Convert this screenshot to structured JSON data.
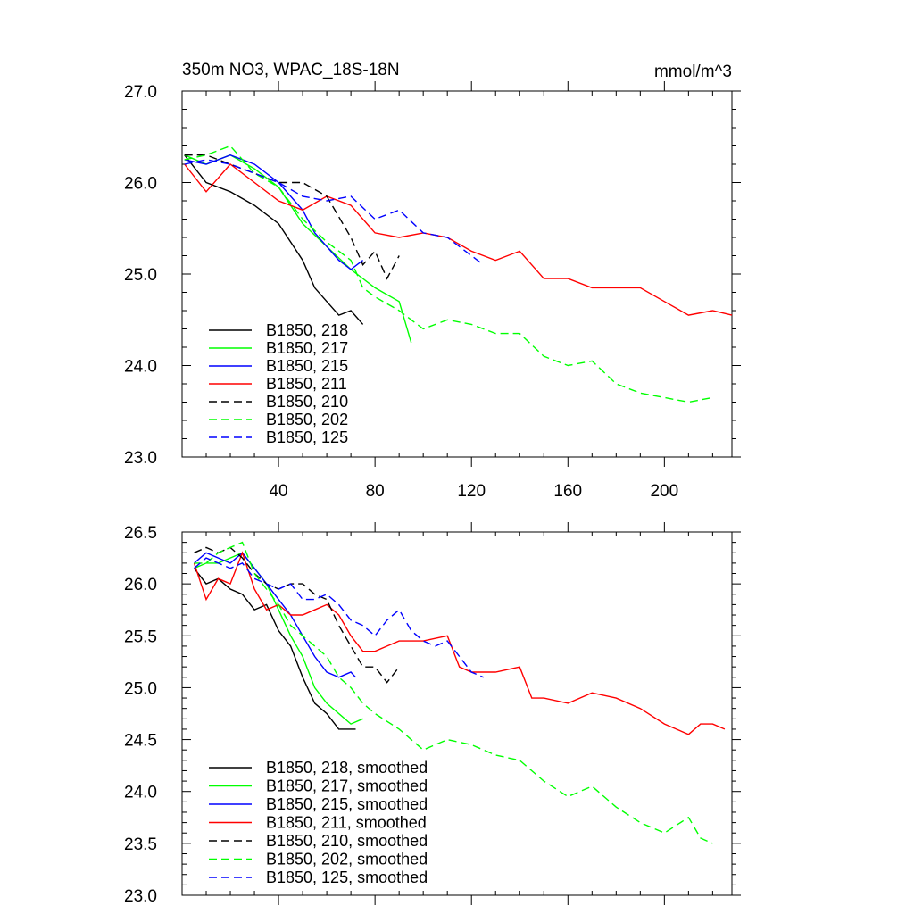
{
  "chart_data": [
    {
      "type": "line",
      "title": "350m NO3, WPAC_18S-18N",
      "units": "mmol/m^3",
      "xlabel": "",
      "ylabel": "",
      "xlim": [
        0,
        228
      ],
      "ylim": [
        23.0,
        27.0
      ],
      "x_ticks": [
        40,
        80,
        120,
        160,
        200
      ],
      "x_tick_labels": [
        "40",
        "80",
        "120",
        "160",
        "200"
      ],
      "y_ticks": [
        23.0,
        24.0,
        25.0,
        26.0,
        27.0
      ],
      "y_tick_labels": [
        "23.0",
        "24.0",
        "25.0",
        "26.0",
        "27.0"
      ],
      "legend_position": "bottom-left",
      "series": [
        {
          "name": "B1850, 218",
          "color": "#000000",
          "dash": "solid",
          "x": [
            1,
            10,
            20,
            30,
            40,
            50,
            55,
            60,
            65,
            70,
            75
          ],
          "values": [
            26.3,
            26.0,
            25.9,
            25.75,
            25.55,
            25.15,
            24.85,
            24.7,
            24.55,
            24.6,
            24.45
          ]
        },
        {
          "name": "B1850, 217",
          "color": "#00ff00",
          "dash": "solid",
          "x": [
            1,
            10,
            20,
            30,
            40,
            50,
            60,
            70,
            80,
            90,
            95
          ],
          "values": [
            26.3,
            26.2,
            26.3,
            26.15,
            25.95,
            25.55,
            25.3,
            25.05,
            24.85,
            24.7,
            24.25
          ]
        },
        {
          "name": "B1850, 215",
          "color": "#0000ff",
          "dash": "solid",
          "x": [
            1,
            10,
            20,
            30,
            40,
            50,
            55,
            60,
            65,
            70,
            75
          ],
          "values": [
            26.25,
            26.2,
            26.3,
            26.2,
            26.0,
            25.7,
            25.45,
            25.3,
            25.15,
            25.05,
            25.15
          ]
        },
        {
          "name": "B1850, 211",
          "color": "#ff0000",
          "dash": "solid",
          "x": [
            1,
            10,
            20,
            30,
            40,
            50,
            60,
            70,
            80,
            90,
            100,
            110,
            120,
            130,
            140,
            150,
            160,
            170,
            180,
            190,
            200,
            210,
            220,
            228
          ],
          "values": [
            26.2,
            25.9,
            26.2,
            26.0,
            25.8,
            25.7,
            25.85,
            25.75,
            25.45,
            25.4,
            25.45,
            25.4,
            25.25,
            25.15,
            25.25,
            24.95,
            24.95,
            24.85,
            24.85,
            24.85,
            24.7,
            24.55,
            24.6,
            24.55
          ]
        },
        {
          "name": "B1850, 210",
          "color": "#000000",
          "dash": "dashed",
          "x": [
            1,
            10,
            20,
            30,
            40,
            50,
            60,
            70,
            75,
            80,
            85,
            90
          ],
          "values": [
            26.3,
            26.3,
            26.2,
            26.1,
            26.0,
            26.0,
            25.85,
            25.4,
            25.1,
            25.25,
            24.95,
            25.2
          ]
        },
        {
          "name": "B1850, 202",
          "color": "#00ff00",
          "dash": "dashed",
          "x": [
            1,
            10,
            20,
            30,
            40,
            50,
            60,
            70,
            75,
            80,
            90,
            100,
            110,
            120,
            130,
            140,
            150,
            160,
            170,
            180,
            190,
            200,
            210,
            220
          ],
          "values": [
            26.25,
            26.3,
            26.4,
            26.1,
            25.95,
            25.6,
            25.35,
            25.15,
            24.85,
            24.75,
            24.6,
            24.4,
            24.5,
            24.45,
            24.35,
            24.35,
            24.1,
            24.0,
            24.05,
            23.8,
            23.7,
            23.65,
            23.6,
            23.65
          ]
        },
        {
          "name": "B1850, 125",
          "color": "#0000ff",
          "dash": "dashed",
          "x": [
            1,
            10,
            20,
            30,
            40,
            50,
            60,
            70,
            80,
            90,
            100,
            110,
            120,
            125
          ],
          "values": [
            26.2,
            26.25,
            26.2,
            26.1,
            26.0,
            25.85,
            25.8,
            25.85,
            25.6,
            25.7,
            25.45,
            25.4,
            25.2,
            25.1
          ]
        }
      ]
    },
    {
      "type": "line",
      "title": "",
      "xlabel": "",
      "ylabel": "",
      "xlim": [
        0,
        228
      ],
      "ylim": [
        23.0,
        26.5
      ],
      "x_ticks": [
        40,
        80,
        120,
        160,
        200
      ],
      "x_tick_labels": [],
      "y_ticks": [
        23.0,
        23.5,
        24.0,
        24.5,
        25.0,
        25.5,
        26.0,
        26.5
      ],
      "y_tick_labels": [
        "23.0",
        "23.5",
        "24.0",
        "24.5",
        "25.0",
        "25.5",
        "26.0",
        "26.5"
      ],
      "legend_position": "bottom-left",
      "series": [
        {
          "name": "B1850, 218, smoothed",
          "color": "#000000",
          "dash": "solid",
          "x": [
            5,
            10,
            15,
            20,
            25,
            30,
            35,
            40,
            45,
            50,
            55,
            60,
            65,
            70,
            72
          ],
          "values": [
            26.15,
            26.0,
            26.05,
            25.95,
            25.9,
            25.75,
            25.8,
            25.55,
            25.4,
            25.1,
            24.85,
            24.75,
            24.6,
            24.6,
            24.6
          ]
        },
        {
          "name": "B1850, 217, smoothed",
          "color": "#00ff00",
          "dash": "solid",
          "x": [
            5,
            10,
            15,
            20,
            25,
            30,
            35,
            40,
            45,
            50,
            55,
            60,
            65,
            70,
            75
          ],
          "values": [
            26.15,
            26.2,
            26.2,
            26.25,
            26.3,
            26.15,
            26.0,
            25.75,
            25.5,
            25.3,
            25.0,
            24.85,
            24.75,
            24.65,
            24.7
          ]
        },
        {
          "name": "B1850, 215, smoothed",
          "color": "#0000ff",
          "dash": "solid",
          "x": [
            5,
            10,
            15,
            20,
            25,
            30,
            35,
            40,
            45,
            50,
            55,
            60,
            65,
            70,
            72
          ],
          "values": [
            26.2,
            26.3,
            26.25,
            26.2,
            26.3,
            26.15,
            26.0,
            25.85,
            25.7,
            25.5,
            25.3,
            25.15,
            25.1,
            25.15,
            25.1
          ]
        },
        {
          "name": "B1850, 211, smoothed",
          "color": "#ff0000",
          "dash": "solid",
          "x": [
            5,
            10,
            15,
            20,
            25,
            30,
            35,
            40,
            45,
            50,
            55,
            60,
            65,
            70,
            75,
            80,
            85,
            90,
            100,
            110,
            115,
            120,
            130,
            140,
            145,
            150,
            160,
            170,
            180,
            190,
            200,
            210,
            215,
            220,
            225
          ],
          "values": [
            26.2,
            25.85,
            26.05,
            26.0,
            26.3,
            25.95,
            25.75,
            25.8,
            25.7,
            25.7,
            25.75,
            25.8,
            25.7,
            25.5,
            25.35,
            25.35,
            25.4,
            25.45,
            25.45,
            25.5,
            25.2,
            25.15,
            25.15,
            25.2,
            24.9,
            24.9,
            24.85,
            24.95,
            24.9,
            24.8,
            24.65,
            24.55,
            24.65,
            24.65,
            24.6
          ]
        },
        {
          "name": "B1850, 210, smoothed",
          "color": "#000000",
          "dash": "dashed",
          "x": [
            5,
            10,
            15,
            20,
            25,
            30,
            35,
            40,
            45,
            50,
            55,
            60,
            65,
            70,
            75,
            80,
            85,
            90
          ],
          "values": [
            26.3,
            26.35,
            26.3,
            26.35,
            26.25,
            26.1,
            26.0,
            25.95,
            26.0,
            26.0,
            25.9,
            25.85,
            25.6,
            25.4,
            25.2,
            25.2,
            25.05,
            25.2
          ]
        },
        {
          "name": "B1850, 202, smoothed",
          "color": "#00ff00",
          "dash": "dashed",
          "x": [
            5,
            10,
            15,
            20,
            25,
            30,
            35,
            40,
            45,
            50,
            55,
            60,
            65,
            70,
            75,
            80,
            90,
            100,
            110,
            120,
            130,
            140,
            150,
            160,
            170,
            180,
            190,
            200,
            210,
            215,
            220
          ],
          "values": [
            26.2,
            26.2,
            26.3,
            26.35,
            26.4,
            26.1,
            25.95,
            25.8,
            25.6,
            25.5,
            25.4,
            25.3,
            25.1,
            25.0,
            24.85,
            24.75,
            24.6,
            24.4,
            24.5,
            24.45,
            24.35,
            24.3,
            24.1,
            23.95,
            24.05,
            23.85,
            23.7,
            23.6,
            23.75,
            23.55,
            23.5
          ]
        },
        {
          "name": "B1850, 125, smoothed",
          "color": "#0000ff",
          "dash": "dashed",
          "x": [
            5,
            10,
            15,
            20,
            25,
            30,
            35,
            40,
            45,
            50,
            55,
            60,
            65,
            70,
            75,
            80,
            85,
            90,
            95,
            100,
            105,
            110,
            115,
            120,
            125
          ],
          "values": [
            26.15,
            26.25,
            26.2,
            26.15,
            26.2,
            26.05,
            26.0,
            25.95,
            26.0,
            25.85,
            25.85,
            25.9,
            25.8,
            25.65,
            25.6,
            25.5,
            25.65,
            25.75,
            25.55,
            25.45,
            25.4,
            25.45,
            25.3,
            25.15,
            25.1
          ]
        }
      ]
    }
  ]
}
